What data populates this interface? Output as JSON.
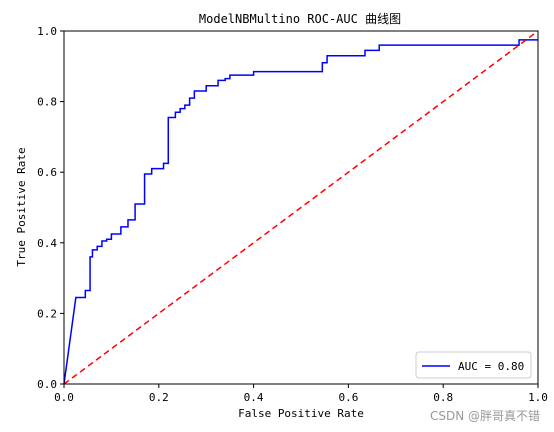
{
  "chart_data": {
    "type": "line",
    "title": "ModelNBMultino ROC-AUC 曲线图",
    "xlabel": "False Positive Rate",
    "ylabel": "True Positive Rate",
    "xlim": [
      0.0,
      1.0
    ],
    "ylim": [
      0.0,
      1.0
    ],
    "x_ticks": [
      "0.0",
      "0.2",
      "0.4",
      "0.6",
      "0.8",
      "1.0"
    ],
    "y_ticks": [
      "0.0",
      "0.2",
      "0.4",
      "0.6",
      "0.8",
      "1.0"
    ],
    "grid": false,
    "legend_position": "lower-right",
    "colors": {
      "roc": "#0000ff",
      "diagonal": "#ff0000"
    },
    "series": [
      {
        "name": "AUC = 0.80",
        "style": "solid",
        "x": [
          0.0,
          0.025,
          0.025,
          0.045,
          0.045,
          0.055,
          0.055,
          0.06,
          0.06,
          0.07,
          0.07,
          0.08,
          0.08,
          0.09,
          0.09,
          0.1,
          0.1,
          0.12,
          0.12,
          0.135,
          0.135,
          0.15,
          0.15,
          0.17,
          0.17,
          0.185,
          0.185,
          0.21,
          0.21,
          0.22,
          0.22,
          0.235,
          0.235,
          0.245,
          0.245,
          0.255,
          0.255,
          0.265,
          0.265,
          0.275,
          0.275,
          0.3,
          0.3,
          0.325,
          0.325,
          0.34,
          0.34,
          0.35,
          0.35,
          0.4,
          0.4,
          0.545,
          0.545,
          0.555,
          0.555,
          0.635,
          0.635,
          0.665,
          0.665,
          0.96,
          0.96,
          1.0
        ],
        "y": [
          0.0,
          0.245,
          0.245,
          0.245,
          0.265,
          0.265,
          0.36,
          0.36,
          0.38,
          0.38,
          0.39,
          0.39,
          0.405,
          0.405,
          0.41,
          0.41,
          0.425,
          0.425,
          0.445,
          0.445,
          0.465,
          0.465,
          0.51,
          0.51,
          0.595,
          0.595,
          0.61,
          0.61,
          0.625,
          0.625,
          0.755,
          0.755,
          0.77,
          0.77,
          0.78,
          0.78,
          0.79,
          0.79,
          0.81,
          0.81,
          0.83,
          0.83,
          0.845,
          0.845,
          0.86,
          0.86,
          0.865,
          0.865,
          0.875,
          0.875,
          0.885,
          0.885,
          0.91,
          0.91,
          0.93,
          0.93,
          0.945,
          0.945,
          0.96,
          0.96,
          0.975,
          0.975
        ]
      },
      {
        "name": "",
        "style": "dashed",
        "x": [
          0.0,
          1.0
        ],
        "y": [
          0.0,
          1.0
        ]
      }
    ]
  },
  "watermark": "CSDN @胖哥真不错"
}
